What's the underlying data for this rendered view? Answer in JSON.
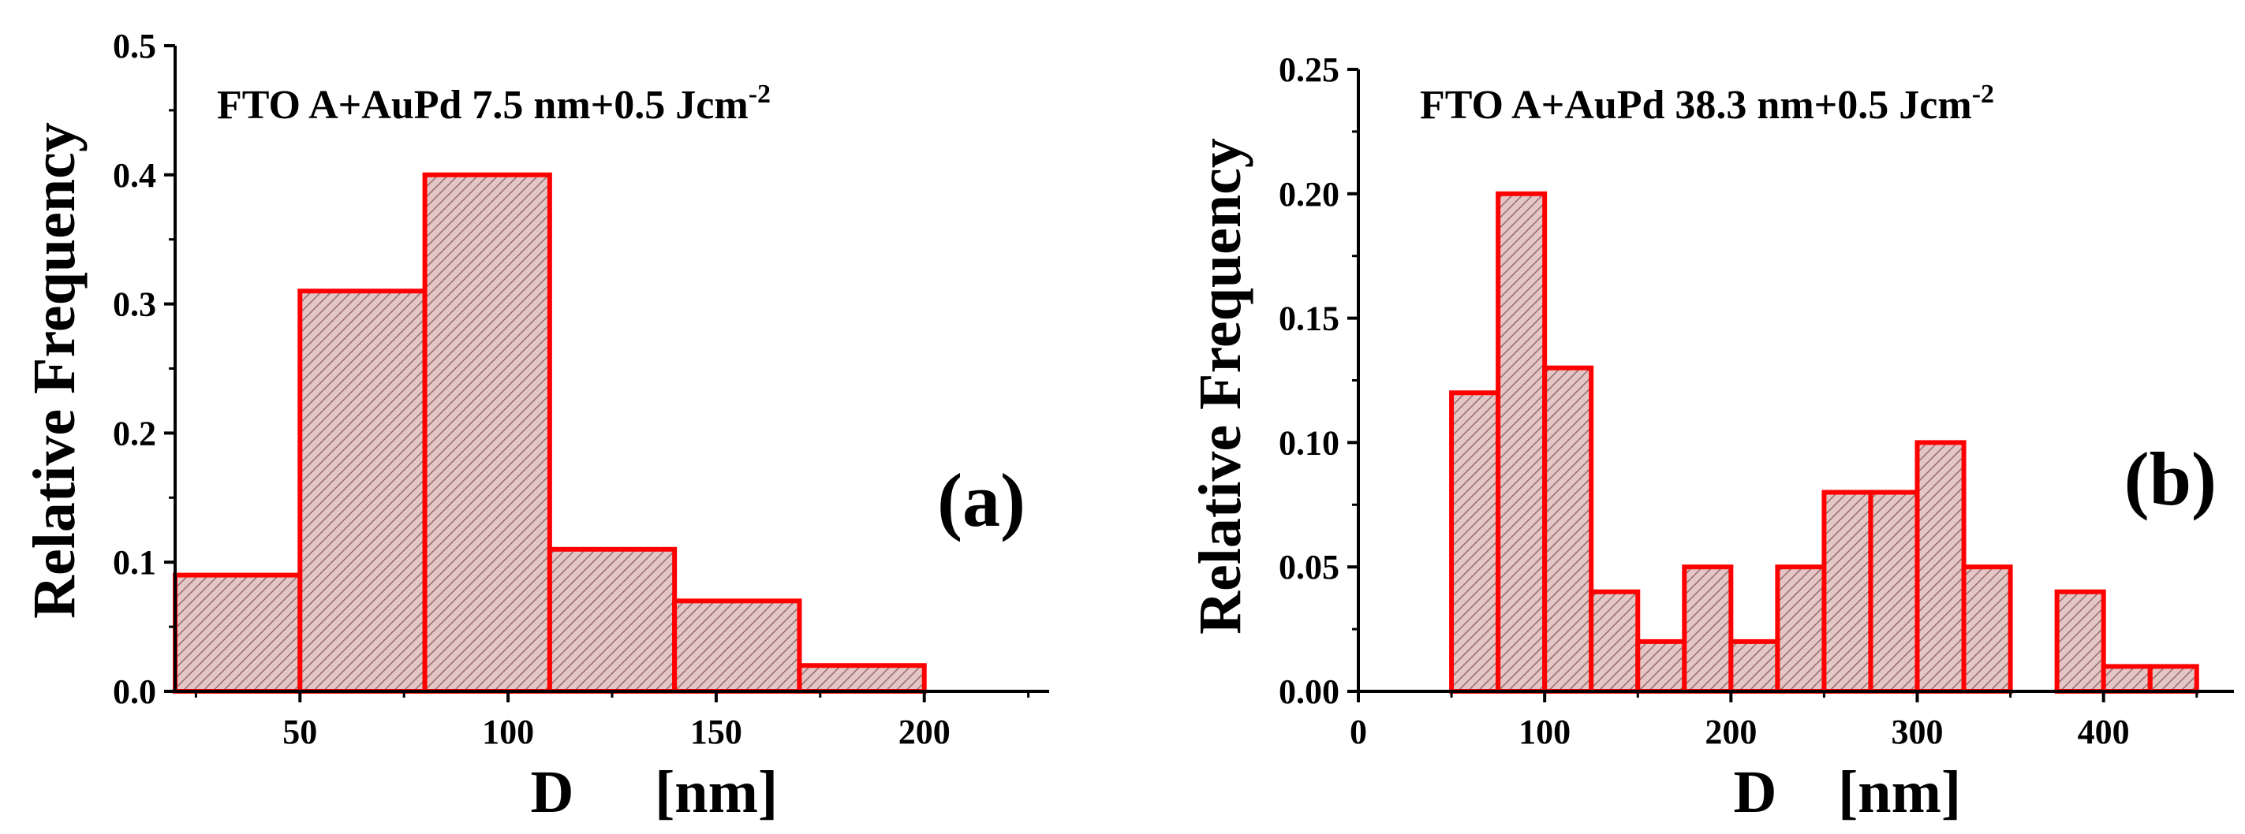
{
  "colors": {
    "bar_stroke": "#ff0000",
    "bar_fill": "#e3c6c6",
    "hatch": "#9a6b6b",
    "axis": "#000000"
  },
  "chart_data": [
    {
      "type": "bar",
      "title_main": "FTO A+AuPd 7.5 nm+0.5 Jcm",
      "title_sup": "-2",
      "panel_label": "(a)",
      "xlabel_var": "D",
      "xlabel_unit": "[nm]",
      "ylabel": "Relative Frequency",
      "xlim": [
        20,
        230
      ],
      "ylim": [
        0,
        0.5
      ],
      "xticks": [
        50,
        100,
        150,
        200
      ],
      "xtick_labels": [
        "50",
        "100",
        "150",
        "200"
      ],
      "yticks": [
        0,
        0.1,
        0.2,
        0.3,
        0.4,
        0.5
      ],
      "ytick_labels": [
        "0.0",
        "0.1",
        "0.2",
        "0.3",
        "0.4",
        "0.5"
      ],
      "bins": [
        {
          "x0": 20,
          "x1": 50,
          "value": 0.09
        },
        {
          "x0": 50,
          "x1": 80,
          "value": 0.31
        },
        {
          "x0": 80,
          "x1": 110,
          "value": 0.4
        },
        {
          "x0": 110,
          "x1": 140,
          "value": 0.11
        },
        {
          "x0": 140,
          "x1": 170,
          "value": 0.07
        },
        {
          "x0": 170,
          "x1": 200,
          "value": 0.02
        }
      ]
    },
    {
      "type": "bar",
      "title_main": "FTO A+AuPd 38.3 nm+0.5 Jcm",
      "title_sup": "-2",
      "panel_label": "(b)",
      "xlabel_var": "D",
      "xlabel_unit": "[nm]",
      "ylabel": "Relative Frequency",
      "xlim": [
        0,
        470
      ],
      "ylim": [
        0,
        0.25
      ],
      "xticks": [
        0,
        100,
        200,
        300,
        400
      ],
      "xtick_labels": [
        "0",
        "100",
        "200",
        "300",
        "400"
      ],
      "yticks": [
        0,
        0.05,
        0.1,
        0.15,
        0.2,
        0.25
      ],
      "ytick_labels": [
        "0.00",
        "0.05",
        "0.10",
        "0.15",
        "0.20",
        "0.25"
      ],
      "bins": [
        {
          "x0": 50,
          "x1": 75,
          "value": 0.12
        },
        {
          "x0": 75,
          "x1": 100,
          "value": 0.2
        },
        {
          "x0": 100,
          "x1": 125,
          "value": 0.13
        },
        {
          "x0": 125,
          "x1": 150,
          "value": 0.04
        },
        {
          "x0": 150,
          "x1": 175,
          "value": 0.02
        },
        {
          "x0": 175,
          "x1": 200,
          "value": 0.05
        },
        {
          "x0": 200,
          "x1": 225,
          "value": 0.02
        },
        {
          "x0": 225,
          "x1": 250,
          "value": 0.05
        },
        {
          "x0": 250,
          "x1": 275,
          "value": 0.08
        },
        {
          "x0": 275,
          "x1": 300,
          "value": 0.08
        },
        {
          "x0": 300,
          "x1": 325,
          "value": 0.1
        },
        {
          "x0": 325,
          "x1": 350,
          "value": 0.05
        },
        {
          "x0": 375,
          "x1": 400,
          "value": 0.04
        },
        {
          "x0": 400,
          "x1": 425,
          "value": 0.01
        },
        {
          "x0": 425,
          "x1": 450,
          "value": 0.01
        }
      ]
    }
  ]
}
